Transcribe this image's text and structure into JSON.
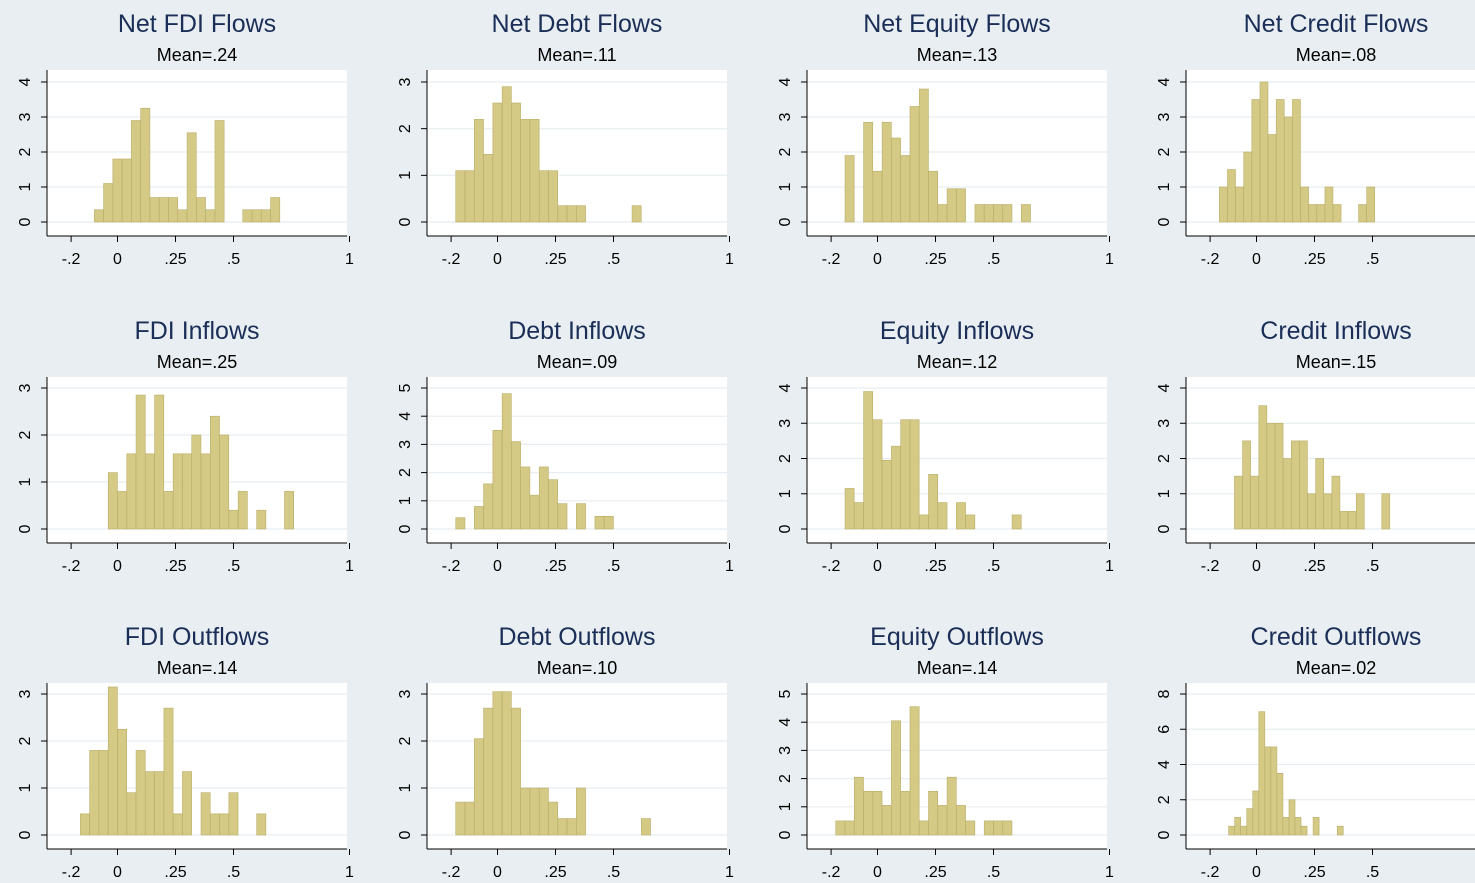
{
  "style": {
    "background": "#e8eef1",
    "plot_background": "#ffffff",
    "bar_fill": "#d4c985",
    "bar_stroke": "#b9ae68",
    "title_color": "#1a2e57",
    "text_color": "#000000",
    "grid_color": "#e8eef1"
  },
  "chart_data": [
    {
      "type": "bar",
      "title": "Net FDI Flows",
      "subtitle": "Mean=.24",
      "xticks": [
        "-.2",
        "0",
        ".25",
        ".5",
        "1"
      ],
      "yticks": [
        "0",
        "1",
        "2",
        "3",
        "4"
      ],
      "xlim": [
        -0.25,
        1.0
      ],
      "ylim": [
        0,
        4.3
      ],
      "bin_width": 0.0396,
      "grid": true,
      "bins": [
        {
          "x": -0.1,
          "y": 0.35
        },
        {
          "x": -0.06,
          "y": 1.1
        },
        {
          "x": -0.02,
          "y": 1.8
        },
        {
          "x": 0.02,
          "y": 1.8
        },
        {
          "x": 0.06,
          "y": 2.9
        },
        {
          "x": 0.1,
          "y": 3.25
        },
        {
          "x": 0.14,
          "y": 0.7
        },
        {
          "x": 0.18,
          "y": 0.7
        },
        {
          "x": 0.22,
          "y": 0.7
        },
        {
          "x": 0.26,
          "y": 0.35
        },
        {
          "x": 0.3,
          "y": 2.55
        },
        {
          "x": 0.34,
          "y": 0.7
        },
        {
          "x": 0.38,
          "y": 0.35
        },
        {
          "x": 0.42,
          "y": 2.9
        },
        {
          "x": 0.54,
          "y": 0.35
        },
        {
          "x": 0.58,
          "y": 0.35
        },
        {
          "x": 0.62,
          "y": 0.35
        },
        {
          "x": 0.66,
          "y": 0.7
        }
      ]
    },
    {
      "type": "bar",
      "title": "Net Debt Flows",
      "subtitle": "Mean=.11",
      "xticks": [
        "-.2",
        "0",
        ".25",
        ".5",
        "1"
      ],
      "yticks": [
        "0",
        "1",
        "2",
        "3"
      ],
      "xlim": [
        -0.25,
        1.0
      ],
      "ylim": [
        0,
        3.25
      ],
      "bin_width": 0.0396,
      "grid": true,
      "bins": [
        {
          "x": -0.18,
          "y": 1.1
        },
        {
          "x": -0.14,
          "y": 1.1
        },
        {
          "x": -0.1,
          "y": 2.2
        },
        {
          "x": -0.06,
          "y": 1.45
        },
        {
          "x": -0.02,
          "y": 2.55
        },
        {
          "x": 0.02,
          "y": 2.9
        },
        {
          "x": 0.06,
          "y": 2.55
        },
        {
          "x": 0.1,
          "y": 2.2
        },
        {
          "x": 0.14,
          "y": 2.2
        },
        {
          "x": 0.18,
          "y": 1.1
        },
        {
          "x": 0.22,
          "y": 1.1
        },
        {
          "x": 0.26,
          "y": 0.35
        },
        {
          "x": 0.3,
          "y": 0.35
        },
        {
          "x": 0.34,
          "y": 0.35
        },
        {
          "x": 0.58,
          "y": 0.35
        }
      ]
    },
    {
      "type": "bar",
      "title": "Net Equity Flows",
      "subtitle": "Mean=.13",
      "xticks": [
        "-.2",
        "0",
        ".25",
        ".5",
        "1"
      ],
      "yticks": [
        "0",
        "1",
        "2",
        "3",
        "4"
      ],
      "xlim": [
        -0.25,
        1.0
      ],
      "ylim": [
        0,
        4.3
      ],
      "bin_width": 0.0396,
      "grid": true,
      "bins": [
        {
          "x": -0.14,
          "y": 1.9
        },
        {
          "x": -0.06,
          "y": 2.85
        },
        {
          "x": -0.02,
          "y": 1.45
        },
        {
          "x": 0.02,
          "y": 2.85
        },
        {
          "x": 0.06,
          "y": 2.4
        },
        {
          "x": 0.1,
          "y": 1.9
        },
        {
          "x": 0.14,
          "y": 3.3
        },
        {
          "x": 0.18,
          "y": 3.8
        },
        {
          "x": 0.22,
          "y": 1.45
        },
        {
          "x": 0.26,
          "y": 0.5
        },
        {
          "x": 0.3,
          "y": 0.95
        },
        {
          "x": 0.34,
          "y": 0.95
        },
        {
          "x": 0.42,
          "y": 0.5
        },
        {
          "x": 0.46,
          "y": 0.5
        },
        {
          "x": 0.5,
          "y": 0.5
        },
        {
          "x": 0.54,
          "y": 0.5
        },
        {
          "x": 0.62,
          "y": 0.5
        }
      ]
    },
    {
      "type": "bar",
      "title": "Net Credit Flows",
      "subtitle": "Mean=.08",
      "xticks": [
        "-.2",
        "0",
        ".25",
        ".5",
        "1"
      ],
      "yticks": [
        "0",
        "1",
        "2",
        "3",
        "4"
      ],
      "xlim": [
        -0.25,
        1.0
      ],
      "ylim": [
        0,
        4.3
      ],
      "bin_width": 0.0345,
      "grid": true,
      "bins": [
        {
          "x": -0.16,
          "y": 1.0
        },
        {
          "x": -0.125,
          "y": 1.5
        },
        {
          "x": -0.09,
          "y": 1.0
        },
        {
          "x": -0.055,
          "y": 2.0
        },
        {
          "x": -0.02,
          "y": 3.5
        },
        {
          "x": 0.015,
          "y": 4.0
        },
        {
          "x": 0.05,
          "y": 2.5
        },
        {
          "x": 0.085,
          "y": 3.5
        },
        {
          "x": 0.12,
          "y": 3.0
        },
        {
          "x": 0.155,
          "y": 3.5
        },
        {
          "x": 0.19,
          "y": 1.0
        },
        {
          "x": 0.225,
          "y": 0.5
        },
        {
          "x": 0.26,
          "y": 0.5
        },
        {
          "x": 0.295,
          "y": 1.0
        },
        {
          "x": 0.33,
          "y": 0.5
        },
        {
          "x": 0.44,
          "y": 0.5
        },
        {
          "x": 0.475,
          "y": 1.0
        }
      ]
    },
    {
      "type": "bar",
      "title": "FDI Inflows",
      "subtitle": "Mean=.25",
      "xticks": [
        "-.2",
        "0",
        ".25",
        ".5",
        "1"
      ],
      "yticks": [
        "0",
        "1",
        "2",
        "3"
      ],
      "xlim": [
        -0.25,
        1.0
      ],
      "ylim": [
        0,
        3.25
      ],
      "bin_width": 0.0396,
      "grid": true,
      "bins": [
        {
          "x": -0.04,
          "y": 1.2
        },
        {
          "x": 0.0,
          "y": 0.8
        },
        {
          "x": 0.04,
          "y": 1.6
        },
        {
          "x": 0.08,
          "y": 2.85
        },
        {
          "x": 0.12,
          "y": 1.6
        },
        {
          "x": 0.16,
          "y": 2.85
        },
        {
          "x": 0.2,
          "y": 0.8
        },
        {
          "x": 0.24,
          "y": 1.6
        },
        {
          "x": 0.28,
          "y": 1.6
        },
        {
          "x": 0.32,
          "y": 2.0
        },
        {
          "x": 0.36,
          "y": 1.6
        },
        {
          "x": 0.4,
          "y": 2.4
        },
        {
          "x": 0.44,
          "y": 2.0
        },
        {
          "x": 0.48,
          "y": 0.4
        },
        {
          "x": 0.52,
          "y": 0.8
        },
        {
          "x": 0.6,
          "y": 0.4
        },
        {
          "x": 0.72,
          "y": 0.8
        }
      ]
    },
    {
      "type": "bar",
      "title": "Debt Inflows",
      "subtitle": "Mean=.09",
      "xticks": [
        "-.2",
        "0",
        ".25",
        ".5",
        "1"
      ],
      "yticks": [
        "0",
        "1",
        "2",
        "3",
        "4",
        "5"
      ],
      "xlim": [
        -0.25,
        1.0
      ],
      "ylim": [
        0,
        5.4
      ],
      "bin_width": 0.0396,
      "grid": true,
      "bins": [
        {
          "x": -0.18,
          "y": 0.4
        },
        {
          "x": -0.1,
          "y": 0.8
        },
        {
          "x": -0.06,
          "y": 1.6
        },
        {
          "x": -0.02,
          "y": 3.5
        },
        {
          "x": 0.02,
          "y": 4.8
        },
        {
          "x": 0.06,
          "y": 3.1
        },
        {
          "x": 0.1,
          "y": 2.2
        },
        {
          "x": 0.14,
          "y": 1.2
        },
        {
          "x": 0.18,
          "y": 2.2
        },
        {
          "x": 0.22,
          "y": 1.75
        },
        {
          "x": 0.26,
          "y": 0.9
        },
        {
          "x": 0.34,
          "y": 0.9
        },
        {
          "x": 0.42,
          "y": 0.45
        },
        {
          "x": 0.46,
          "y": 0.45
        }
      ]
    },
    {
      "type": "bar",
      "title": "Equity Inflows",
      "subtitle": "Mean=.12",
      "xticks": [
        "-.2",
        "0",
        ".25",
        ".5",
        "1"
      ],
      "yticks": [
        "0",
        "1",
        "2",
        "3",
        "4"
      ],
      "xlim": [
        -0.25,
        1.0
      ],
      "ylim": [
        0,
        4.3
      ],
      "bin_width": 0.0396,
      "grid": true,
      "bins": [
        {
          "x": -0.14,
          "y": 1.15
        },
        {
          "x": -0.1,
          "y": 0.75
        },
        {
          "x": -0.06,
          "y": 3.9
        },
        {
          "x": -0.02,
          "y": 3.1
        },
        {
          "x": 0.02,
          "y": 1.95
        },
        {
          "x": 0.06,
          "y": 2.35
        },
        {
          "x": 0.1,
          "y": 3.1
        },
        {
          "x": 0.14,
          "y": 3.1
        },
        {
          "x": 0.18,
          "y": 0.4
        },
        {
          "x": 0.22,
          "y": 1.55
        },
        {
          "x": 0.26,
          "y": 0.75
        },
        {
          "x": 0.34,
          "y": 0.75
        },
        {
          "x": 0.38,
          "y": 0.4
        },
        {
          "x": 0.58,
          "y": 0.4
        }
      ]
    },
    {
      "type": "bar",
      "title": "Credit Inflows",
      "subtitle": "Mean=.15",
      "xticks": [
        "-.2",
        "0",
        ".25",
        ".5",
        "1"
      ],
      "yticks": [
        "0",
        "1",
        "2",
        "3",
        "4"
      ],
      "xlim": [
        -0.25,
        1.0
      ],
      "ylim": [
        0,
        4.3
      ],
      "bin_width": 0.0345,
      "grid": true,
      "bins": [
        {
          "x": -0.095,
          "y": 1.5
        },
        {
          "x": -0.06,
          "y": 2.5
        },
        {
          "x": -0.025,
          "y": 1.5
        },
        {
          "x": 0.01,
          "y": 3.5
        },
        {
          "x": 0.045,
          "y": 3.0
        },
        {
          "x": 0.08,
          "y": 3.0
        },
        {
          "x": 0.115,
          "y": 2.0
        },
        {
          "x": 0.15,
          "y": 2.5
        },
        {
          "x": 0.185,
          "y": 2.5
        },
        {
          "x": 0.22,
          "y": 1.0
        },
        {
          "x": 0.255,
          "y": 2.0
        },
        {
          "x": 0.29,
          "y": 1.0
        },
        {
          "x": 0.325,
          "y": 1.5
        },
        {
          "x": 0.36,
          "y": 0.5
        },
        {
          "x": 0.395,
          "y": 0.5
        },
        {
          "x": 0.43,
          "y": 1.0
        },
        {
          "x": 0.54,
          "y": 1.0
        }
      ]
    },
    {
      "type": "bar",
      "title": "FDI Outflows",
      "subtitle": "Mean=.14",
      "xticks": [
        "-.2",
        "0",
        ".25",
        ".5",
        "1"
      ],
      "yticks": [
        "0",
        "1",
        "2",
        "3"
      ],
      "xlim": [
        -0.25,
        1.0
      ],
      "ylim": [
        0,
        3.5
      ],
      "bin_width": 0.0396,
      "grid": true,
      "bins": [
        {
          "x": -0.16,
          "y": 0.45
        },
        {
          "x": -0.12,
          "y": 1.8
        },
        {
          "x": -0.08,
          "y": 1.8
        },
        {
          "x": -0.04,
          "y": 3.15
        },
        {
          "x": 0.0,
          "y": 2.25
        },
        {
          "x": 0.04,
          "y": 0.9
        },
        {
          "x": 0.08,
          "y": 1.8
        },
        {
          "x": 0.12,
          "y": 1.35
        },
        {
          "x": 0.16,
          "y": 1.35
        },
        {
          "x": 0.2,
          "y": 2.7
        },
        {
          "x": 0.24,
          "y": 0.45
        },
        {
          "x": 0.28,
          "y": 1.35
        },
        {
          "x": 0.36,
          "y": 0.9
        },
        {
          "x": 0.4,
          "y": 0.45
        },
        {
          "x": 0.44,
          "y": 0.45
        },
        {
          "x": 0.48,
          "y": 0.9
        },
        {
          "x": 0.6,
          "y": 0.45
        }
      ]
    },
    {
      "type": "bar",
      "title": "Debt Outflows",
      "subtitle": "Mean=.10",
      "xticks": [
        "-.2",
        "0",
        ".25",
        ".5",
        "1"
      ],
      "yticks": [
        "0",
        "1",
        "2",
        "3"
      ],
      "xlim": [
        -0.25,
        1.0
      ],
      "ylim": [
        0,
        3.5
      ],
      "bin_width": 0.0396,
      "grid": true,
      "bins": [
        {
          "x": -0.18,
          "y": 0.7
        },
        {
          "x": -0.14,
          "y": 0.7
        },
        {
          "x": -0.1,
          "y": 2.05
        },
        {
          "x": -0.06,
          "y": 2.7
        },
        {
          "x": -0.02,
          "y": 3.05
        },
        {
          "x": 0.02,
          "y": 3.05
        },
        {
          "x": 0.06,
          "y": 2.7
        },
        {
          "x": 0.1,
          "y": 1.0
        },
        {
          "x": 0.14,
          "y": 1.0
        },
        {
          "x": 0.18,
          "y": 1.0
        },
        {
          "x": 0.22,
          "y": 0.7
        },
        {
          "x": 0.26,
          "y": 0.35
        },
        {
          "x": 0.3,
          "y": 0.35
        },
        {
          "x": 0.34,
          "y": 1.0
        },
        {
          "x": 0.62,
          "y": 0.35
        }
      ]
    },
    {
      "type": "bar",
      "title": "Equity Outflows",
      "subtitle": "Mean=.14",
      "xticks": [
        "-.2",
        "0",
        ".25",
        ".5",
        "1"
      ],
      "yticks": [
        "0",
        "1",
        "2",
        "3",
        "4",
        "5"
      ],
      "xlim": [
        -0.25,
        1.0
      ],
      "ylim": [
        0,
        5.4
      ],
      "bin_width": 0.0396,
      "grid": true,
      "bins": [
        {
          "x": -0.18,
          "y": 0.5
        },
        {
          "x": -0.14,
          "y": 0.5
        },
        {
          "x": -0.1,
          "y": 2.05
        },
        {
          "x": -0.06,
          "y": 1.55
        },
        {
          "x": -0.02,
          "y": 1.55
        },
        {
          "x": 0.02,
          "y": 1.05
        },
        {
          "x": 0.06,
          "y": 4.05
        },
        {
          "x": 0.1,
          "y": 1.55
        },
        {
          "x": 0.14,
          "y": 4.55
        },
        {
          "x": 0.18,
          "y": 0.5
        },
        {
          "x": 0.22,
          "y": 1.55
        },
        {
          "x": 0.26,
          "y": 1.05
        },
        {
          "x": 0.3,
          "y": 2.05
        },
        {
          "x": 0.34,
          "y": 1.05
        },
        {
          "x": 0.38,
          "y": 0.5
        },
        {
          "x": 0.46,
          "y": 0.5
        },
        {
          "x": 0.5,
          "y": 0.5
        },
        {
          "x": 0.54,
          "y": 0.5
        }
      ]
    },
    {
      "type": "bar",
      "title": "Credit Outflows",
      "subtitle": "Mean=.02",
      "xticks": [
        "-.2",
        "0",
        ".25",
        ".5",
        "1"
      ],
      "yticks": [
        "0",
        "2",
        "4",
        "6",
        "8"
      ],
      "xlim": [
        -0.25,
        1.0
      ],
      "ylim": [
        0,
        8.7
      ],
      "bin_width": 0.0259,
      "grid": true,
      "bins": [
        {
          "x": -0.12,
          "y": 0.5
        },
        {
          "x": -0.094,
          "y": 1.0
        },
        {
          "x": -0.068,
          "y": 0.5
        },
        {
          "x": -0.042,
          "y": 1.5
        },
        {
          "x": -0.016,
          "y": 2.5
        },
        {
          "x": 0.01,
          "y": 7.0
        },
        {
          "x": 0.036,
          "y": 5.0
        },
        {
          "x": 0.062,
          "y": 5.0
        },
        {
          "x": 0.088,
          "y": 3.5
        },
        {
          "x": 0.114,
          "y": 1.0
        },
        {
          "x": 0.14,
          "y": 2.0
        },
        {
          "x": 0.166,
          "y": 1.0
        },
        {
          "x": 0.192,
          "y": 0.5
        },
        {
          "x": 0.244,
          "y": 1.0
        },
        {
          "x": 0.348,
          "y": 0.5
        }
      ]
    }
  ]
}
